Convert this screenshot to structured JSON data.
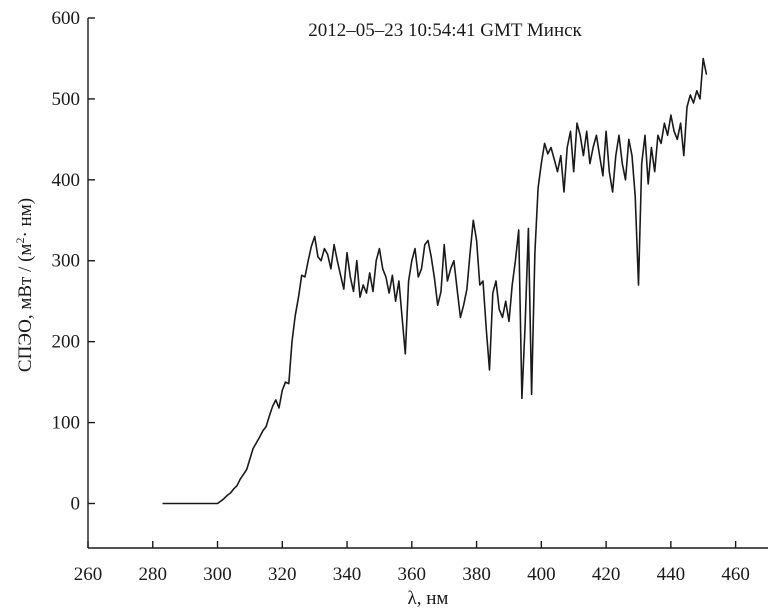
{
  "chart_data": {
    "type": "line",
    "title": "2012–05–23 10:54:41 GMT Минск",
    "xlabel": "λ, нм",
    "ylabel_main": "СПЭО, мВт / (м",
    "ylabel_sup": "2",
    "ylabel_tail": "· нм)",
    "xlim": [
      260,
      470
    ],
    "ylim": [
      -55,
      600
    ],
    "xticks": [
      260,
      280,
      300,
      320,
      340,
      360,
      380,
      400,
      420,
      440,
      460
    ],
    "yticks": [
      0,
      100,
      200,
      300,
      400,
      500,
      600
    ],
    "grid": false,
    "line_color": "#1a1a1a",
    "series": [
      {
        "x": [
          283,
          290,
          295,
          300,
          301,
          302,
          303,
          304,
          305,
          306,
          307,
          308,
          309,
          310,
          311,
          312,
          313,
          314,
          315,
          316,
          317,
          318,
          319,
          320,
          321,
          322,
          323,
          324,
          325,
          326,
          327,
          328,
          329,
          330,
          331,
          332,
          333,
          334,
          335,
          336,
          337,
          338,
          339,
          340,
          341,
          342,
          343,
          344,
          345,
          346,
          347,
          348,
          349,
          350,
          351,
          352,
          353,
          354,
          355,
          356,
          357,
          358,
          359,
          360,
          361,
          362,
          363,
          364,
          365,
          366,
          367,
          368,
          369,
          370,
          371,
          372,
          373,
          374,
          375,
          376,
          377,
          378,
          379,
          380,
          381,
          382,
          383,
          384,
          385,
          386,
          387,
          388,
          389,
          390,
          391,
          392,
          393,
          394,
          395,
          396,
          397,
          398,
          399,
          400,
          401,
          402,
          403,
          404,
          405,
          406,
          407,
          408,
          409,
          410,
          411,
          412,
          413,
          414,
          415,
          416,
          417,
          418,
          419,
          420,
          421,
          422,
          423,
          424,
          425,
          426,
          427,
          428,
          429,
          430,
          431,
          432,
          433,
          434,
          435,
          436,
          437,
          438,
          439,
          440,
          441,
          442,
          443,
          444,
          445,
          446,
          447,
          448,
          449,
          450,
          451
        ],
        "y": [
          0,
          0,
          0,
          0,
          3,
          6,
          10,
          13,
          18,
          22,
          30,
          36,
          42,
          55,
          68,
          75,
          82,
          90,
          95,
          108,
          120,
          128,
          118,
          140,
          150,
          148,
          200,
          232,
          255,
          282,
          280,
          300,
          318,
          330,
          305,
          300,
          315,
          308,
          290,
          320,
          300,
          282,
          265,
          310,
          280,
          262,
          300,
          255,
          270,
          260,
          285,
          262,
          300,
          315,
          290,
          280,
          260,
          282,
          250,
          275,
          230,
          185,
          275,
          300,
          315,
          280,
          290,
          320,
          325,
          305,
          278,
          245,
          262,
          320,
          275,
          290,
          300,
          265,
          230,
          245,
          265,
          310,
          350,
          325,
          270,
          275,
          215,
          165,
          260,
          275,
          240,
          230,
          250,
          225,
          270,
          300,
          338,
          130,
          220,
          340,
          135,
          310,
          390,
          420,
          445,
          432,
          440,
          425,
          410,
          430,
          385,
          440,
          460,
          410,
          470,
          455,
          430,
          460,
          420,
          440,
          455,
          430,
          405,
          460,
          410,
          385,
          430,
          455,
          420,
          400,
          450,
          430,
          380,
          270,
          420,
          455,
          395,
          440,
          410,
          455,
          445,
          470,
          455,
          480,
          460,
          450,
          470,
          430,
          490,
          505,
          495,
          510,
          500,
          550,
          530
        ]
      }
    ]
  }
}
